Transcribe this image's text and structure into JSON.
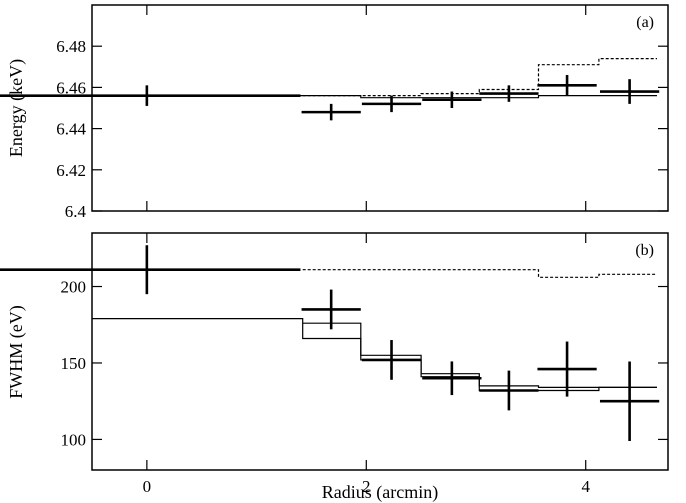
{
  "chart_data": [
    {
      "id": "a",
      "type": "scatter",
      "panel_label": "(a)",
      "ylabel": "Energy (keV)",
      "xlim": [
        -0.5,
        4.75
      ],
      "ylim": [
        6.4,
        6.5
      ],
      "yticks": [
        6.4,
        6.42,
        6.44,
        6.46,
        6.48
      ],
      "ytick_labels": [
        "6.4",
        "6.42",
        "6.44",
        "6.46",
        "6.48"
      ],
      "points": [
        {
          "x": 0.0,
          "xerr": 1.4,
          "y": 6.456,
          "yerr": 0.005
        },
        {
          "x": 1.68,
          "xerr": 0.27,
          "y": 6.448,
          "yerr": 0.004
        },
        {
          "x": 2.23,
          "xerr": 0.27,
          "y": 6.452,
          "yerr": 0.004
        },
        {
          "x": 2.78,
          "xerr": 0.27,
          "y": 6.454,
          "yerr": 0.004
        },
        {
          "x": 3.3,
          "xerr": 0.27,
          "y": 6.457,
          "yerr": 0.004
        },
        {
          "x": 3.83,
          "xerr": 0.27,
          "y": 6.461,
          "yerr": 0.005
        },
        {
          "x": 4.4,
          "xerr": 0.27,
          "y": 6.458,
          "yerr": 0.006
        }
      ],
      "model_solid": {
        "edges": [
          -0.5,
          1.42,
          1.95,
          2.5,
          3.03,
          3.57,
          4.12,
          4.65
        ],
        "values": [
          6.456,
          6.456,
          6.455,
          6.455,
          6.455,
          6.456,
          6.456
        ]
      },
      "model_dashed": {
        "edges": [
          1.42,
          1.95,
          2.5,
          3.03,
          3.57,
          4.12,
          4.65
        ],
        "values": [
          6.456,
          6.456,
          6.457,
          6.459,
          6.471,
          6.474
        ]
      }
    },
    {
      "id": "b",
      "type": "scatter",
      "panel_label": "(b)",
      "ylabel": "FWHM (eV)",
      "xlabel": "Radius (arcmin)",
      "xlim": [
        -0.5,
        4.75
      ],
      "ylim": [
        80,
        235
      ],
      "xticks": [
        0,
        2,
        4
      ],
      "xtick_labels": [
        "0",
        "2",
        "4"
      ],
      "yticks": [
        100,
        150,
        200
      ],
      "ytick_labels": [
        "100",
        "150",
        "200"
      ],
      "points": [
        {
          "x": 0.0,
          "xerr": 1.4,
          "y": 211,
          "yerr": 16
        },
        {
          "x": 1.68,
          "xerr": 0.27,
          "y": 185,
          "yerr": 13
        },
        {
          "x": 2.23,
          "xerr": 0.27,
          "y": 152,
          "yerr": 13
        },
        {
          "x": 2.78,
          "xerr": 0.27,
          "y": 140,
          "yerr": 11
        },
        {
          "x": 3.3,
          "xerr": 0.27,
          "y": 132,
          "yerr": 13
        },
        {
          "x": 3.83,
          "xerr": 0.27,
          "y": 146,
          "yerr": 18
        },
        {
          "x": 4.4,
          "xerr": 0.27,
          "y": 125,
          "yerr": 26
        }
      ],
      "model_solid_a": {
        "edges": [
          -0.5,
          1.42,
          1.95,
          2.5,
          3.03,
          3.57,
          4.12,
          4.65
        ],
        "values": [
          179,
          166,
          155,
          143,
          135,
          134,
          134
        ]
      },
      "model_solid_b": {
        "edges": [
          1.42,
          1.95,
          2.5,
          3.03,
          3.57,
          4.12,
          4.65
        ],
        "values": [
          176,
          152,
          141,
          132,
          132,
          134
        ]
      },
      "model_dashed": {
        "edges": [
          1.42,
          1.95,
          2.5,
          3.03,
          3.57,
          4.12,
          4.65
        ],
        "values": [
          211,
          211,
          211,
          211,
          206,
          208
        ]
      }
    }
  ]
}
